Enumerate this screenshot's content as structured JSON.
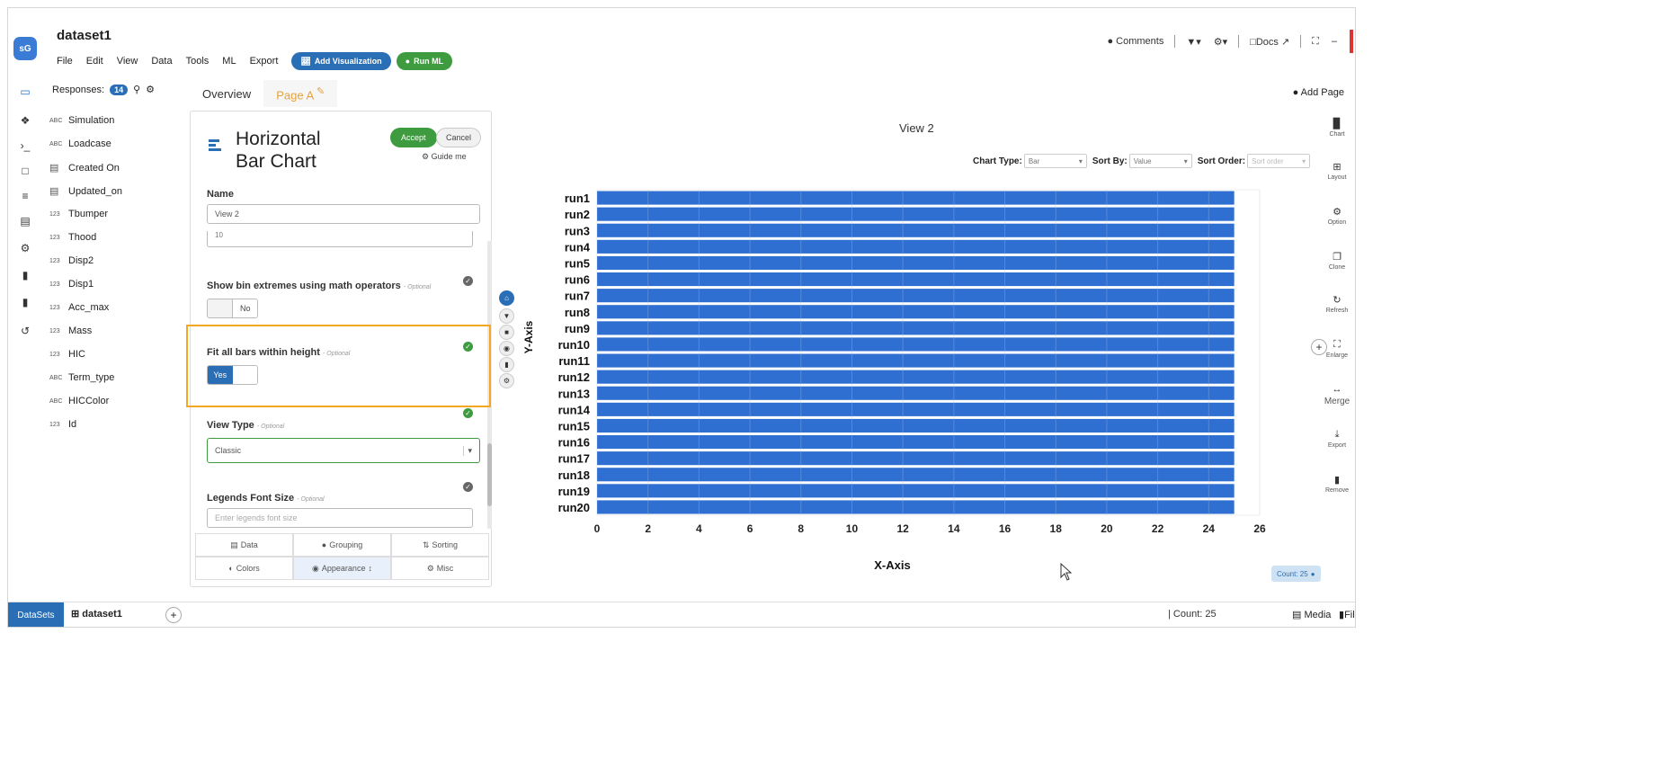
{
  "app": {
    "name": "dataset1",
    "logo_text": "sG"
  },
  "menu": {
    "items": [
      "File",
      "Edit",
      "View",
      "Data",
      "Tools",
      "ML",
      "Export"
    ],
    "add_viz": "Add Visualization",
    "run_ml": "Run ML"
  },
  "topbar": {
    "comments": "Comments",
    "docs": "Docs"
  },
  "fields_panel": {
    "responses_label": "Responses:",
    "responses_count": "14",
    "fields": [
      {
        "type": "ABC",
        "name": "Simulation"
      },
      {
        "type": "ABC",
        "name": "Loadcase"
      },
      {
        "type": "DATE",
        "name": "Created On"
      },
      {
        "type": "DATE",
        "name": "Updated_on"
      },
      {
        "type": "123",
        "name": "Tbumper"
      },
      {
        "type": "123",
        "name": "Thood"
      },
      {
        "type": "123",
        "name": "Disp2"
      },
      {
        "type": "123",
        "name": "Disp1"
      },
      {
        "type": "123",
        "name": "Acc_max"
      },
      {
        "type": "123",
        "name": "Mass"
      },
      {
        "type": "123",
        "name": "HIC"
      },
      {
        "type": "ABC",
        "name": "Term_type"
      },
      {
        "type": "ABC",
        "name": "HICColor"
      },
      {
        "type": "123",
        "name": "Id"
      }
    ]
  },
  "page_tabs": {
    "overview": "Overview",
    "page_a": "Page A",
    "add_page": "Add Page"
  },
  "config": {
    "title_line1": "Horizontal",
    "title_line2": "Bar Chart",
    "accept": "Accept",
    "cancel": "Cancel",
    "guide": "Guide me",
    "name_label": "Name",
    "name_value": "View 2",
    "partial_input_value": "10",
    "bin_label": "Show bin extremes using math operators",
    "bin_optional": "- Optional",
    "bin_value": "No",
    "fit_label": "Fit all bars within height",
    "fit_optional": "- Optional",
    "fit_value": "Yes",
    "viewtype_label": "View Type",
    "viewtype_optional": "- Optional",
    "viewtype_value": "Classic",
    "legend_label": "Legends Font Size",
    "legend_optional": "- Optional",
    "legend_placeholder": "Enter legends font size",
    "tabs": [
      "Data",
      "Grouping",
      "Sorting",
      "Colors",
      "Appearance",
      "Misc"
    ]
  },
  "chart_controls": {
    "view_title": "View 2",
    "chart_type_label": "Chart Type:",
    "chart_type_value": "Bar",
    "sort_by_label": "Sort By:",
    "sort_by_value": "Value",
    "sort_order_label": "Sort Order:",
    "sort_order_value": "Sort order",
    "count_badge": "Count: 25"
  },
  "chart_data": {
    "type": "bar",
    "orientation": "horizontal",
    "categories": [
      "run1",
      "run2",
      "run3",
      "run4",
      "run5",
      "run6",
      "run7",
      "run8",
      "run9",
      "run10",
      "run11",
      "run12",
      "run13",
      "run14",
      "run15",
      "run16",
      "run17",
      "run18",
      "run19",
      "run20"
    ],
    "values": [
      25,
      25,
      25,
      25,
      25,
      25,
      25,
      25,
      25,
      25,
      25,
      25,
      25,
      25,
      25,
      25,
      25,
      25,
      25,
      25
    ],
    "xlabel": "X-Axis",
    "ylabel": "Y-Axis",
    "xlim": [
      0,
      26
    ],
    "xticks": [
      0,
      2,
      4,
      6,
      8,
      10,
      12,
      14,
      16,
      18,
      20,
      22,
      24,
      26
    ],
    "grid": true,
    "bar_color": "#2f6fd1"
  },
  "right_rail": [
    "Chart",
    "Layout",
    "Option",
    "Clone",
    "Refresh",
    "Enlarge",
    "Merge",
    "Export",
    "Remove"
  ],
  "footer": {
    "datasets": "DataSets",
    "dataset": "dataset1",
    "count": "Count: 25",
    "media": "Media",
    "file": "Fil"
  }
}
